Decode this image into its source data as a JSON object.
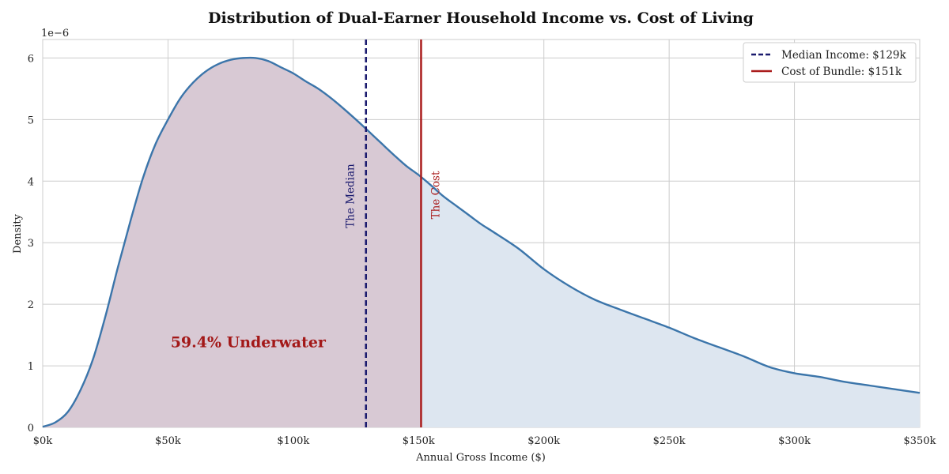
{
  "chart_data": {
    "type": "area",
    "title": "Distribution of Dual-Earner Household Income vs. Cost of Living",
    "xlabel": "Annual Gross Income ($)",
    "ylabel": "Density",
    "y_offset_label": "1e−6",
    "xlim": [
      0,
      350000
    ],
    "ylim": [
      0,
      6.3
    ],
    "grid": true,
    "x_ticks": [
      {
        "value": 0,
        "label": "$0k"
      },
      {
        "value": 50000,
        "label": "$50k"
      },
      {
        "value": 100000,
        "label": "$100k"
      },
      {
        "value": 150000,
        "label": "$150k"
      },
      {
        "value": 200000,
        "label": "$200k"
      },
      {
        "value": 250000,
        "label": "$250k"
      },
      {
        "value": 300000,
        "label": "$300k"
      },
      {
        "value": 350000,
        "label": "$350k"
      }
    ],
    "y_ticks": [
      {
        "value": 0,
        "label": "0"
      },
      {
        "value": 1,
        "label": "1"
      },
      {
        "value": 2,
        "label": "2"
      },
      {
        "value": 3,
        "label": "3"
      },
      {
        "value": 4,
        "label": "4"
      },
      {
        "value": 5,
        "label": "5"
      },
      {
        "value": 6,
        "label": "6"
      }
    ],
    "series": [
      {
        "color": "#3b75aa",
        "x": [
          0,
          5000,
          10000,
          15000,
          20000,
          25000,
          30000,
          35000,
          40000,
          45000,
          50000,
          55000,
          60000,
          65000,
          70000,
          75000,
          80000,
          85000,
          90000,
          95000,
          100000,
          105000,
          110000,
          115000,
          120000,
          125000,
          129000,
          135000,
          140000,
          145000,
          150000,
          155000,
          160000,
          165000,
          170000,
          175000,
          180000,
          190000,
          200000,
          210000,
          220000,
          230000,
          240000,
          250000,
          260000,
          270000,
          280000,
          290000,
          300000,
          310000,
          320000,
          330000,
          340000,
          350000
        ],
        "y": [
          0.01,
          0.08,
          0.25,
          0.6,
          1.1,
          1.8,
          2.6,
          3.35,
          4.05,
          4.6,
          5.0,
          5.35,
          5.6,
          5.78,
          5.9,
          5.97,
          6.0,
          6.0,
          5.95,
          5.85,
          5.75,
          5.62,
          5.5,
          5.35,
          5.18,
          5.0,
          4.85,
          4.62,
          4.43,
          4.25,
          4.1,
          3.93,
          3.75,
          3.6,
          3.45,
          3.3,
          3.17,
          2.9,
          2.57,
          2.3,
          2.08,
          1.92,
          1.77,
          1.62,
          1.45,
          1.3,
          1.15,
          0.98,
          0.88,
          0.82,
          0.74,
          0.68,
          0.62,
          0.56
        ]
      }
    ],
    "shaded_regions": [
      {
        "from": 0,
        "to": 151000,
        "color": "#d8c9d4"
      },
      {
        "from": 151000,
        "to": 350000,
        "color": "#dde6f0"
      }
    ],
    "vlines": [
      {
        "x": 129000,
        "label": "The Median",
        "style": "dashed",
        "color": "#1a1a6e",
        "legend": "Median Income: $129k"
      },
      {
        "x": 151000,
        "label": "The Cost",
        "style": "solid",
        "color": "#aa1c1c",
        "legend": "Cost of Bundle: $151k"
      }
    ],
    "annotations": [
      {
        "text": "59.4% Underwater",
        "x": 82000,
        "y": 1.3,
        "color": "#a31818"
      }
    ],
    "legend_position": "top-right"
  }
}
